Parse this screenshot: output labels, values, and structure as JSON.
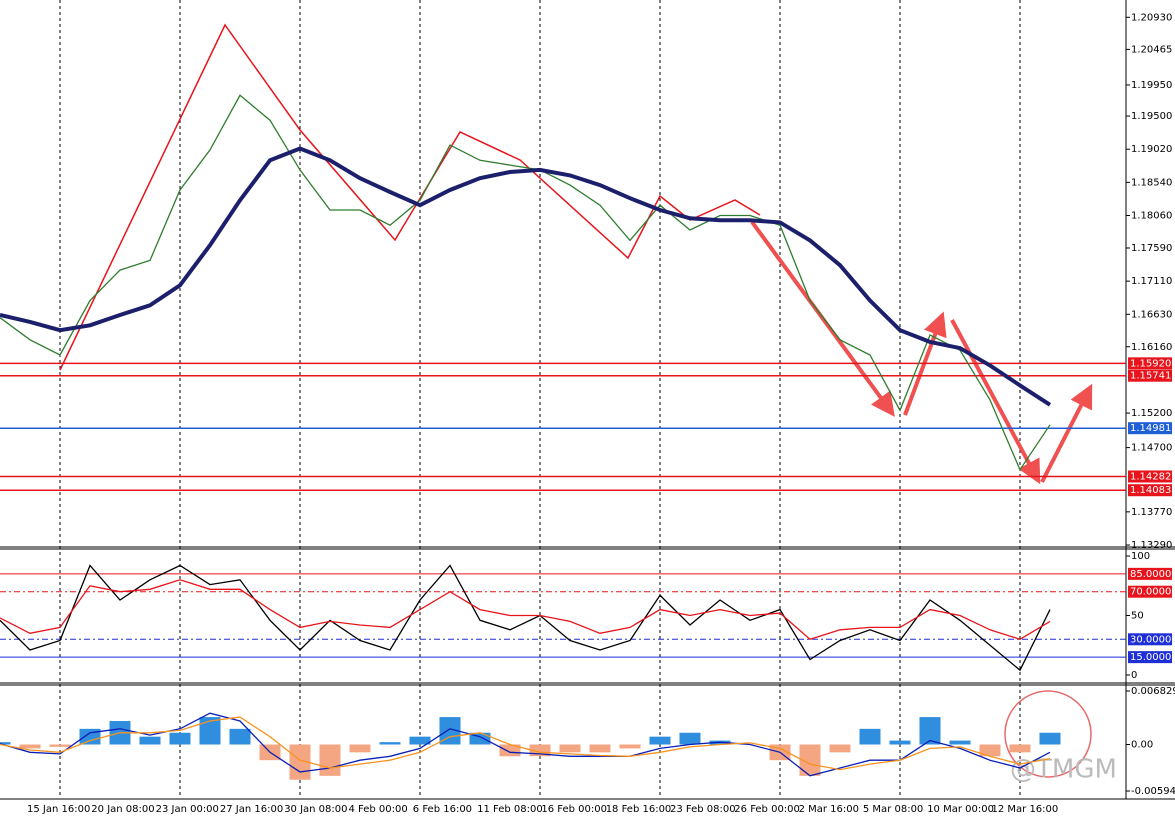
{
  "chart_data": [
    {
      "type": "line",
      "ylim": [
        1.1329,
        1.2118
      ],
      "yticks": [
        {
          "value": 1.2093,
          "label": "1.20930"
        },
        {
          "value": 1.20465,
          "label": "1.20465"
        },
        {
          "value": 1.1995,
          "label": "1.19950"
        },
        {
          "value": 1.195,
          "label": "1.19500"
        },
        {
          "value": 1.1902,
          "label": "1.19020"
        },
        {
          "value": 1.1854,
          "label": "1.18540"
        },
        {
          "value": 1.1806,
          "label": "1.18060"
        },
        {
          "value": 1.1759,
          "label": "1.17590"
        },
        {
          "value": 1.1711,
          "label": "1.17110"
        },
        {
          "value": 1.1663,
          "label": "1.16630"
        },
        {
          "value": 1.1616,
          "label": "1.16160"
        },
        {
          "value": 1.152,
          "label": "1.15200"
        },
        {
          "value": 1.147,
          "label": "1.14700"
        },
        {
          "value": 1.1377,
          "label": "1.13770"
        },
        {
          "value": 1.1329,
          "label": "1.13290"
        }
      ],
      "levels": [
        {
          "value": 1.1592,
          "label": "1.15920",
          "color": "#e8141c"
        },
        {
          "value": 1.15741,
          "label": "1.15741",
          "color": "#e8141c"
        },
        {
          "value": 1.14981,
          "label": "1.14981",
          "color": "#1f5fd6"
        },
        {
          "value": 1.14282,
          "label": "1.14282",
          "color": "#e8141c"
        },
        {
          "value": 1.14083,
          "label": "1.14083",
          "color": "#e8141c"
        }
      ],
      "series": [
        {
          "color": "#2f7d2f",
          "values": [
            1.1658,
            1.1626,
            1.1604,
            1.1683,
            1.1727,
            1.1741,
            1.1843,
            1.1901,
            1.198,
            1.1944,
            1.1872,
            1.1814,
            1.1814,
            1.1792,
            1.1828,
            1.1908,
            1.1886,
            1.1879,
            1.1872,
            1.185,
            1.1821,
            1.177,
            1.1821,
            1.1785,
            1.1806,
            1.1806,
            1.1792,
            1.1683,
            1.1626,
            1.1604,
            1.1524,
            1.1633,
            1.1611,
            1.1539,
            1.1438,
            1.1503
          ]
        },
        {
          "color": "#1c1f6b",
          "values": [
            1.1662,
            1.1652,
            1.164,
            1.1647,
            1.1662,
            1.1676,
            1.1705,
            1.1763,
            1.1828,
            1.1886,
            1.1903,
            1.1886,
            1.186,
            1.184,
            1.1821,
            1.1843,
            1.186,
            1.1869,
            1.1872,
            1.1864,
            1.185,
            1.1831,
            1.1814,
            1.1802,
            1.1799,
            1.1799,
            1.1796,
            1.177,
            1.1734,
            1.1683,
            1.164,
            1.1623,
            1.1614,
            1.1589,
            1.156,
            1.1532
          ]
        }
      ]
    },
    {
      "type": "line",
      "ylim": [
        -5.9,
        105.9
      ],
      "yticks": [
        0,
        50,
        100
      ],
      "levels": [
        {
          "value": 85,
          "label": "85.0000",
          "color": "#e8141c"
        },
        {
          "value": 70,
          "label": "70.0000",
          "color": "#e8141c"
        },
        {
          "value": 30,
          "label": "30.0000",
          "color": "#1f2fd6"
        },
        {
          "value": 15,
          "label": "15.0000",
          "color": "#1f2fd6"
        }
      ],
      "series": [
        {
          "color": "#000000",
          "values": [
            46,
            21,
            29,
            92,
            63,
            80,
            92,
            76,
            80,
            46,
            21,
            46,
            29,
            21,
            63,
            92,
            46,
            38,
            50,
            29,
            21,
            29,
            67,
            42,
            63,
            46,
            55,
            13,
            29,
            38,
            29,
            63,
            46,
            25,
            4,
            55
          ]
        },
        {
          "color": "#e8141c",
          "values": [
            48,
            35,
            40,
            75,
            70,
            72,
            80,
            72,
            72,
            55,
            40,
            45,
            42,
            40,
            55,
            70,
            55,
            50,
            50,
            45,
            35,
            40,
            55,
            50,
            55,
            50,
            52,
            30,
            38,
            40,
            40,
            55,
            50,
            38,
            30,
            45
          ]
        }
      ]
    },
    {
      "type": "histogram",
      "ylim": [
        -0.00683,
        0.00747
      ],
      "yticks": [
        0.0068298,
        {
          "value": 0,
          "label": "0.00"
        },
        {
          "value": -0.00594,
          "label": "-0.0059400"
        }
      ],
      "colors": {
        "positive": "#2f8fde",
        "negative": "#f4a582"
      },
      "values": [
        0.0003,
        -0.0005,
        -0.0003,
        0.002,
        0.003,
        0.001,
        0.0015,
        0.0035,
        0.002,
        -0.002,
        -0.0045,
        -0.004,
        -0.001,
        0.0003,
        0.001,
        0.0035,
        0.0015,
        -0.0015,
        -0.0015,
        -0.001,
        -0.001,
        -0.0005,
        0.001,
        0.0015,
        0.0005,
        0,
        -0.002,
        -0.004,
        -0.001,
        0.002,
        0.0005,
        0.0035,
        0.0005,
        -0.0015,
        -0.001,
        0.0015
      ],
      "series": [
        {
          "color": "#0a1fb8",
          "values": [
            0.0001,
            -0.001,
            -0.0012,
            0.0015,
            0.002,
            0.0012,
            0.002,
            0.004,
            0.003,
            -0.001,
            -0.0035,
            -0.003,
            -0.002,
            -0.0015,
            -0.0005,
            0.002,
            0.001,
            -0.001,
            -0.0012,
            -0.0015,
            -0.0015,
            -0.0015,
            -0.0005,
            0,
            0.0003,
            0,
            -0.001,
            -0.004,
            -0.003,
            -0.002,
            -0.002,
            0.0005,
            -0.0005,
            -0.002,
            -0.003,
            -0.001
          ]
        },
        {
          "color": "#f7931e",
          "values": [
            0,
            -0.0007,
            -0.001,
            0.0005,
            0.0015,
            0.0015,
            0.0018,
            0.003,
            0.0035,
            0.001,
            -0.002,
            -0.003,
            -0.0025,
            -0.002,
            -0.001,
            0.001,
            0.0015,
            0,
            -0.001,
            -0.0012,
            -0.0014,
            -0.0015,
            -0.001,
            -0.0003,
            0,
            0.0002,
            -0.0005,
            -0.0025,
            -0.0032,
            -0.0025,
            -0.002,
            -0.0005,
            -0.0003,
            -0.0015,
            -0.0025,
            -0.0018
          ]
        }
      ]
    }
  ],
  "x_axis": {
    "labels": [
      "15 Jan 16:00",
      "20 Jan 08:00",
      "23 Jan 00:00",
      "27 Jan 16:00",
      "30 Jan 08:00",
      "4 Feb 00:00",
      "6 Feb 16:00",
      "11 Feb 08:00",
      "16 Feb 00:00",
      "18 Feb 16:00",
      "23 Feb 08:00",
      "26 Feb 00:00",
      "2 Mar 16:00",
      "5 Mar 08:00",
      "10 Mar 00:00",
      "12 Mar 16:00"
    ]
  },
  "watermark": "@TMGM"
}
